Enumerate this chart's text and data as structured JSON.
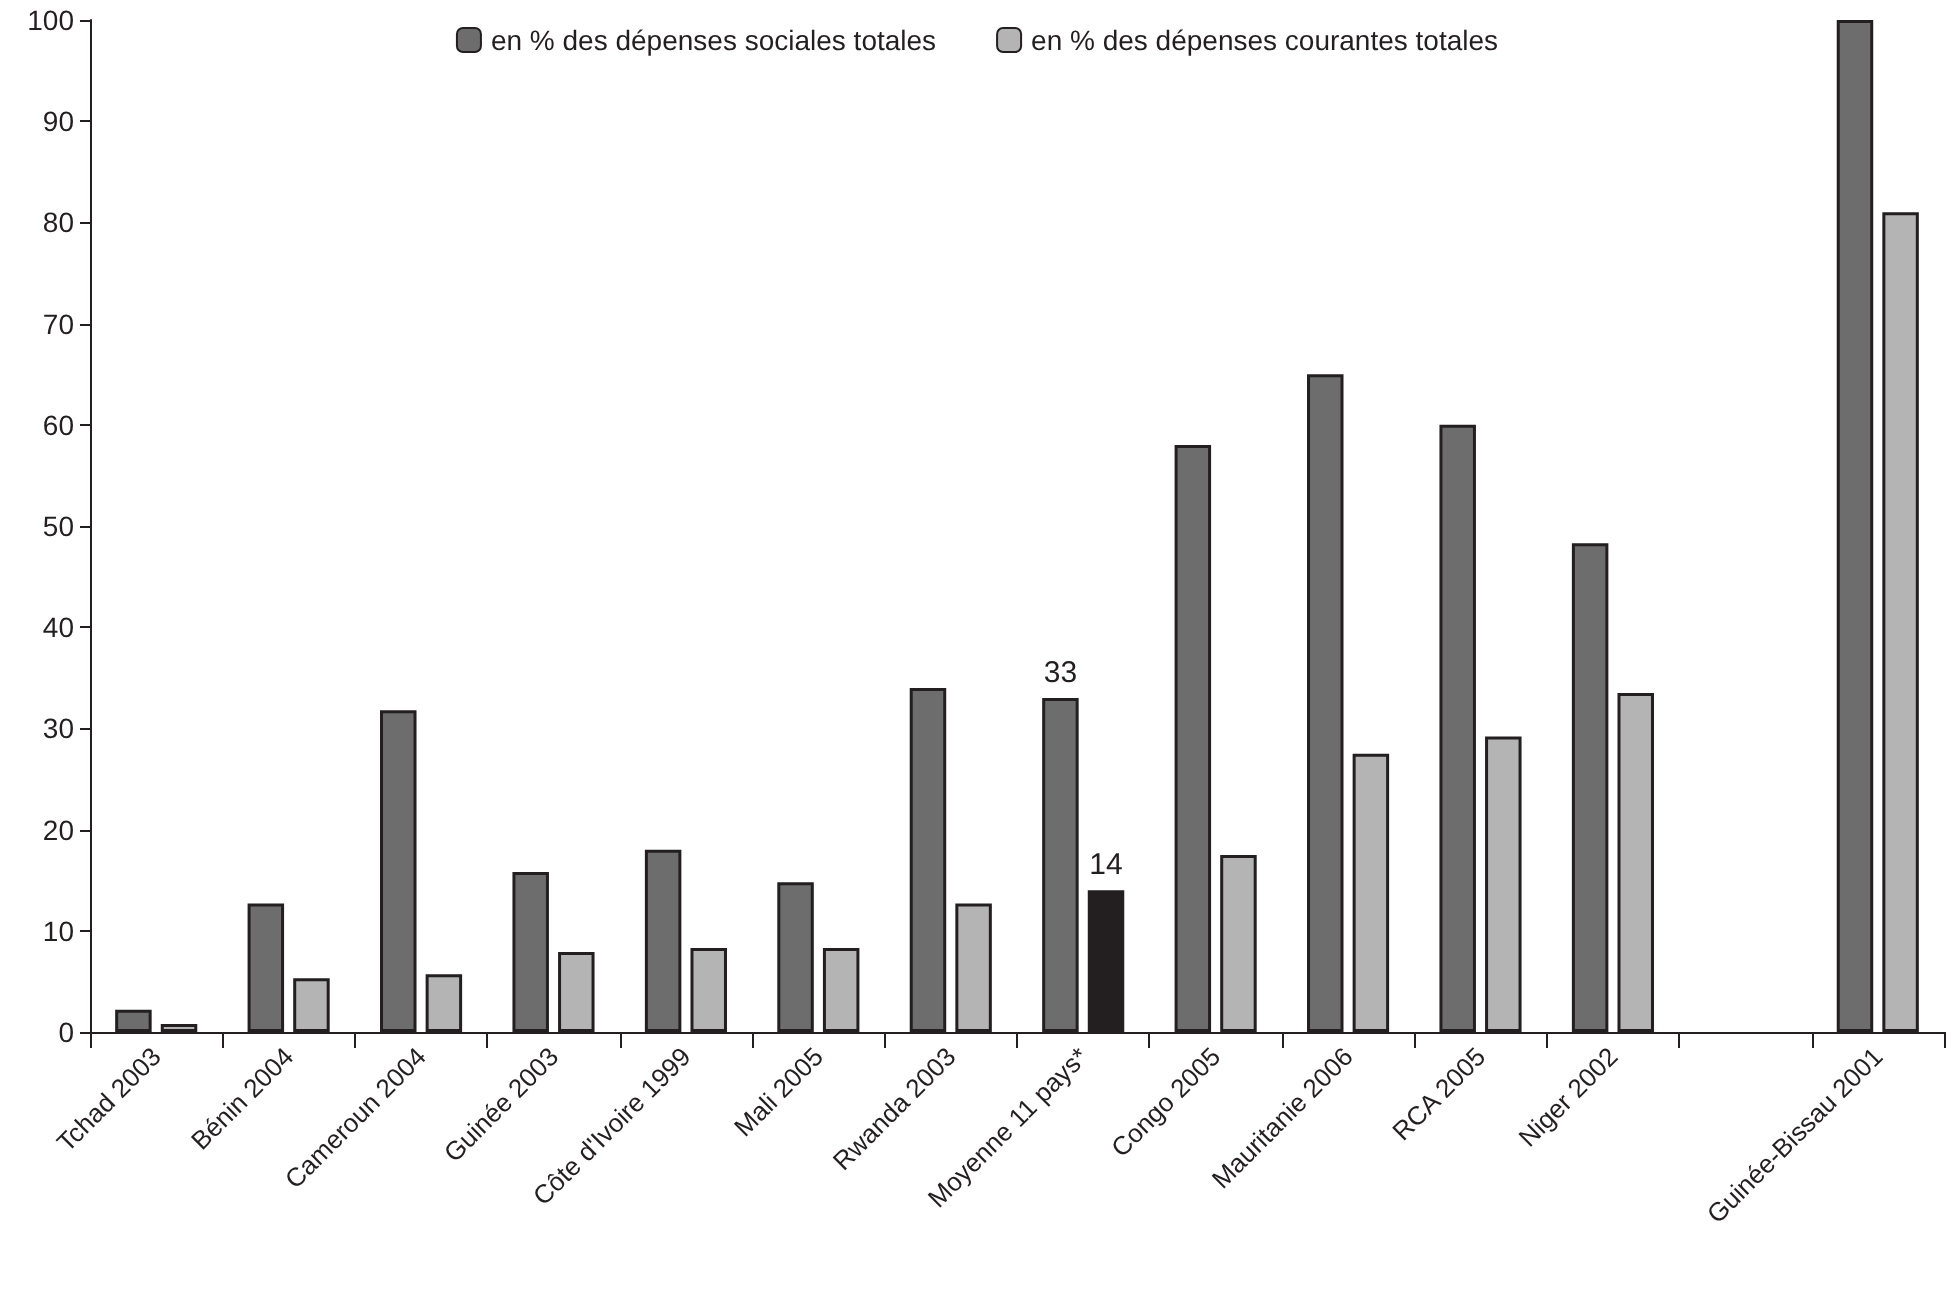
{
  "chart_data": {
    "type": "bar",
    "categories": [
      "Tchad 2003",
      "Bénin 2004",
      "Cameroun 2004",
      "Guinée 2003",
      "Côte d'Ivoire 1999",
      "Mali 2005",
      "Rwanda 2003",
      "Moyenne 11 pays*",
      "Congo 2005",
      "Mauritanie 2006",
      "RCA 2005",
      "Niger 2002",
      null,
      "Guinée-Bissau 2001"
    ],
    "series": [
      {
        "name": "en % des dépenses sociales totales",
        "color": "#6d6d6d",
        "values": [
          2.2,
          12.7,
          31.8,
          15.8,
          18,
          14.8,
          34,
          33,
          58,
          65,
          60,
          48.3,
          null,
          100
        ],
        "value_labels": [
          null,
          null,
          null,
          null,
          null,
          null,
          null,
          "33",
          null,
          null,
          null,
          null,
          null,
          null
        ]
      },
      {
        "name": "en % des dépenses courantes totales",
        "color": "#b4b4b4",
        "colors": [
          "#b4b4b4",
          "#b4b4b4",
          "#b4b4b4",
          "#b4b4b4",
          "#b4b4b4",
          "#b4b4b4",
          "#b4b4b4",
          "#231f20",
          "#b4b4b4",
          "#b4b4b4",
          "#b4b4b4",
          "#b4b4b4",
          "#b4b4b4",
          "#b4b4b4"
        ],
        "values": [
          0.8,
          5.3,
          5.7,
          7.9,
          8.3,
          8.3,
          12.7,
          14,
          17.5,
          27.5,
          29.2,
          33.5,
          null,
          81
        ],
        "value_labels": [
          null,
          null,
          null,
          null,
          null,
          null,
          null,
          "14",
          null,
          null,
          null,
          null,
          null,
          null
        ]
      }
    ],
    "ylim": [
      0,
      100
    ],
    "yticks": [
      0,
      10,
      20,
      30,
      40,
      50,
      60,
      70,
      80,
      90,
      100
    ],
    "grid": false,
    "legend": "top"
  }
}
